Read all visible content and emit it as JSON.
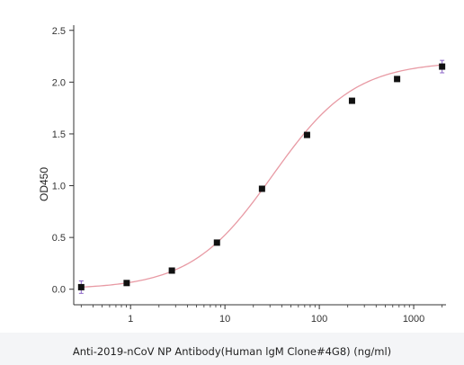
{
  "chart_data": {
    "type": "scatter",
    "title": "",
    "xlabel": "Anti-2019-nCoV NP Antibody(Human lgM Clone#4G8) (ng/ml)",
    "ylabel": "OD450",
    "xscale": "log",
    "xlim": [
      0.25,
      2200
    ],
    "ylim": [
      -0.15,
      2.55
    ],
    "grid": false,
    "x_ticks": [
      1,
      10,
      100,
      1000
    ],
    "x_tick_labels": [
      "1",
      "10",
      "100",
      "1000"
    ],
    "y_ticks": [
      0.0,
      0.5,
      1.0,
      1.5,
      2.0,
      2.5
    ],
    "y_tick_labels": [
      "0.0",
      "0.5",
      "1.0",
      "1.5",
      "2.0",
      "2.5"
    ],
    "series": [
      {
        "marker": "square",
        "x": [
          0.3,
          0.91,
          2.74,
          8.23,
          24.7,
          74.1,
          222,
          667,
          2000
        ],
        "y": [
          0.02,
          0.06,
          0.18,
          0.45,
          0.97,
          1.49,
          1.82,
          2.03,
          2.15
        ],
        "error": [
          0.06,
          0.01,
          0.01,
          0.01,
          0.01,
          0.01,
          0.01,
          0.02,
          0.06
        ]
      }
    ],
    "fit_curve": {
      "type": "4PL",
      "bottom": 0.0,
      "top": 2.2,
      "ec50": 32,
      "hill": 1.0
    }
  },
  "colors": {
    "marker": "#111111",
    "fit_line": "#e89aa4",
    "error_bar": "#8a63c7",
    "axis": "#333333",
    "caption_band": "#f4f5f7"
  }
}
